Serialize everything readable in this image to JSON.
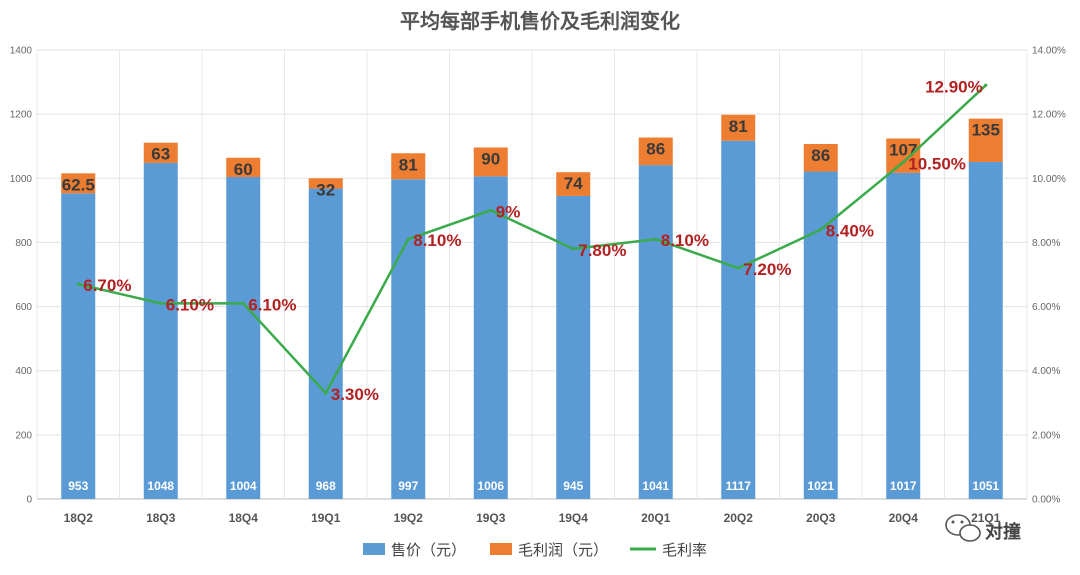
{
  "chart_data": {
    "type": "bar",
    "title": "平均每部手机售价及毛利润变化",
    "categories": [
      "18Q2",
      "18Q3",
      "18Q4",
      "19Q1",
      "19Q2",
      "19Q3",
      "19Q4",
      "20Q1",
      "20Q2",
      "20Q3",
      "20Q4",
      "21Q1"
    ],
    "series": [
      {
        "name": "售价（元）",
        "type": "bar",
        "stack": "total",
        "color": "#5b9bd5",
        "values": [
          953,
          1048,
          1004,
          968,
          997,
          1006,
          945,
          1041,
          1117,
          1021,
          1017,
          1051
        ]
      },
      {
        "name": "毛利润（元）",
        "type": "bar",
        "stack": "total",
        "color": "#ed7d31",
        "values": [
          62.5,
          63,
          60,
          32,
          81,
          90,
          74,
          86,
          81,
          86,
          107,
          135
        ],
        "labels": [
          "62.5",
          "63",
          "60",
          "32",
          "81",
          "90",
          "74",
          "86",
          "81",
          "86",
          "107",
          "135"
        ]
      },
      {
        "name": "毛利率",
        "type": "line",
        "axis": "right",
        "color": "#3aaa4a",
        "values": [
          6.7,
          6.1,
          6.1,
          3.3,
          8.1,
          9.0,
          7.8,
          8.1,
          7.2,
          8.4,
          10.5,
          12.9
        ],
        "labels": [
          "6.70%",
          "6.10%",
          "6.10%",
          "3.30%",
          "8.10%",
          "9%",
          "7.80%",
          "8.10%",
          "7.20%",
          "8.40%",
          "10.50%",
          "12.90%"
        ]
      }
    ],
    "ylim_left": [
      0,
      1400
    ],
    "yticks_left": [
      "0",
      "200",
      "400",
      "600",
      "800",
      "1000",
      "1200",
      "1400"
    ],
    "ylim_right": [
      0,
      14
    ],
    "yticks_right": [
      "0.00%",
      "2.00%",
      "4.00%",
      "6.00%",
      "8.00%",
      "10.00%",
      "12.00%",
      "14.00%"
    ],
    "grid": true,
    "legend_position": "bottom"
  },
  "legend": {
    "price": "售价（元）",
    "profit": "毛利润（元）",
    "margin": "毛利率"
  },
  "watermark": {
    "text": "对撞",
    "icon": "wechat-icon"
  }
}
